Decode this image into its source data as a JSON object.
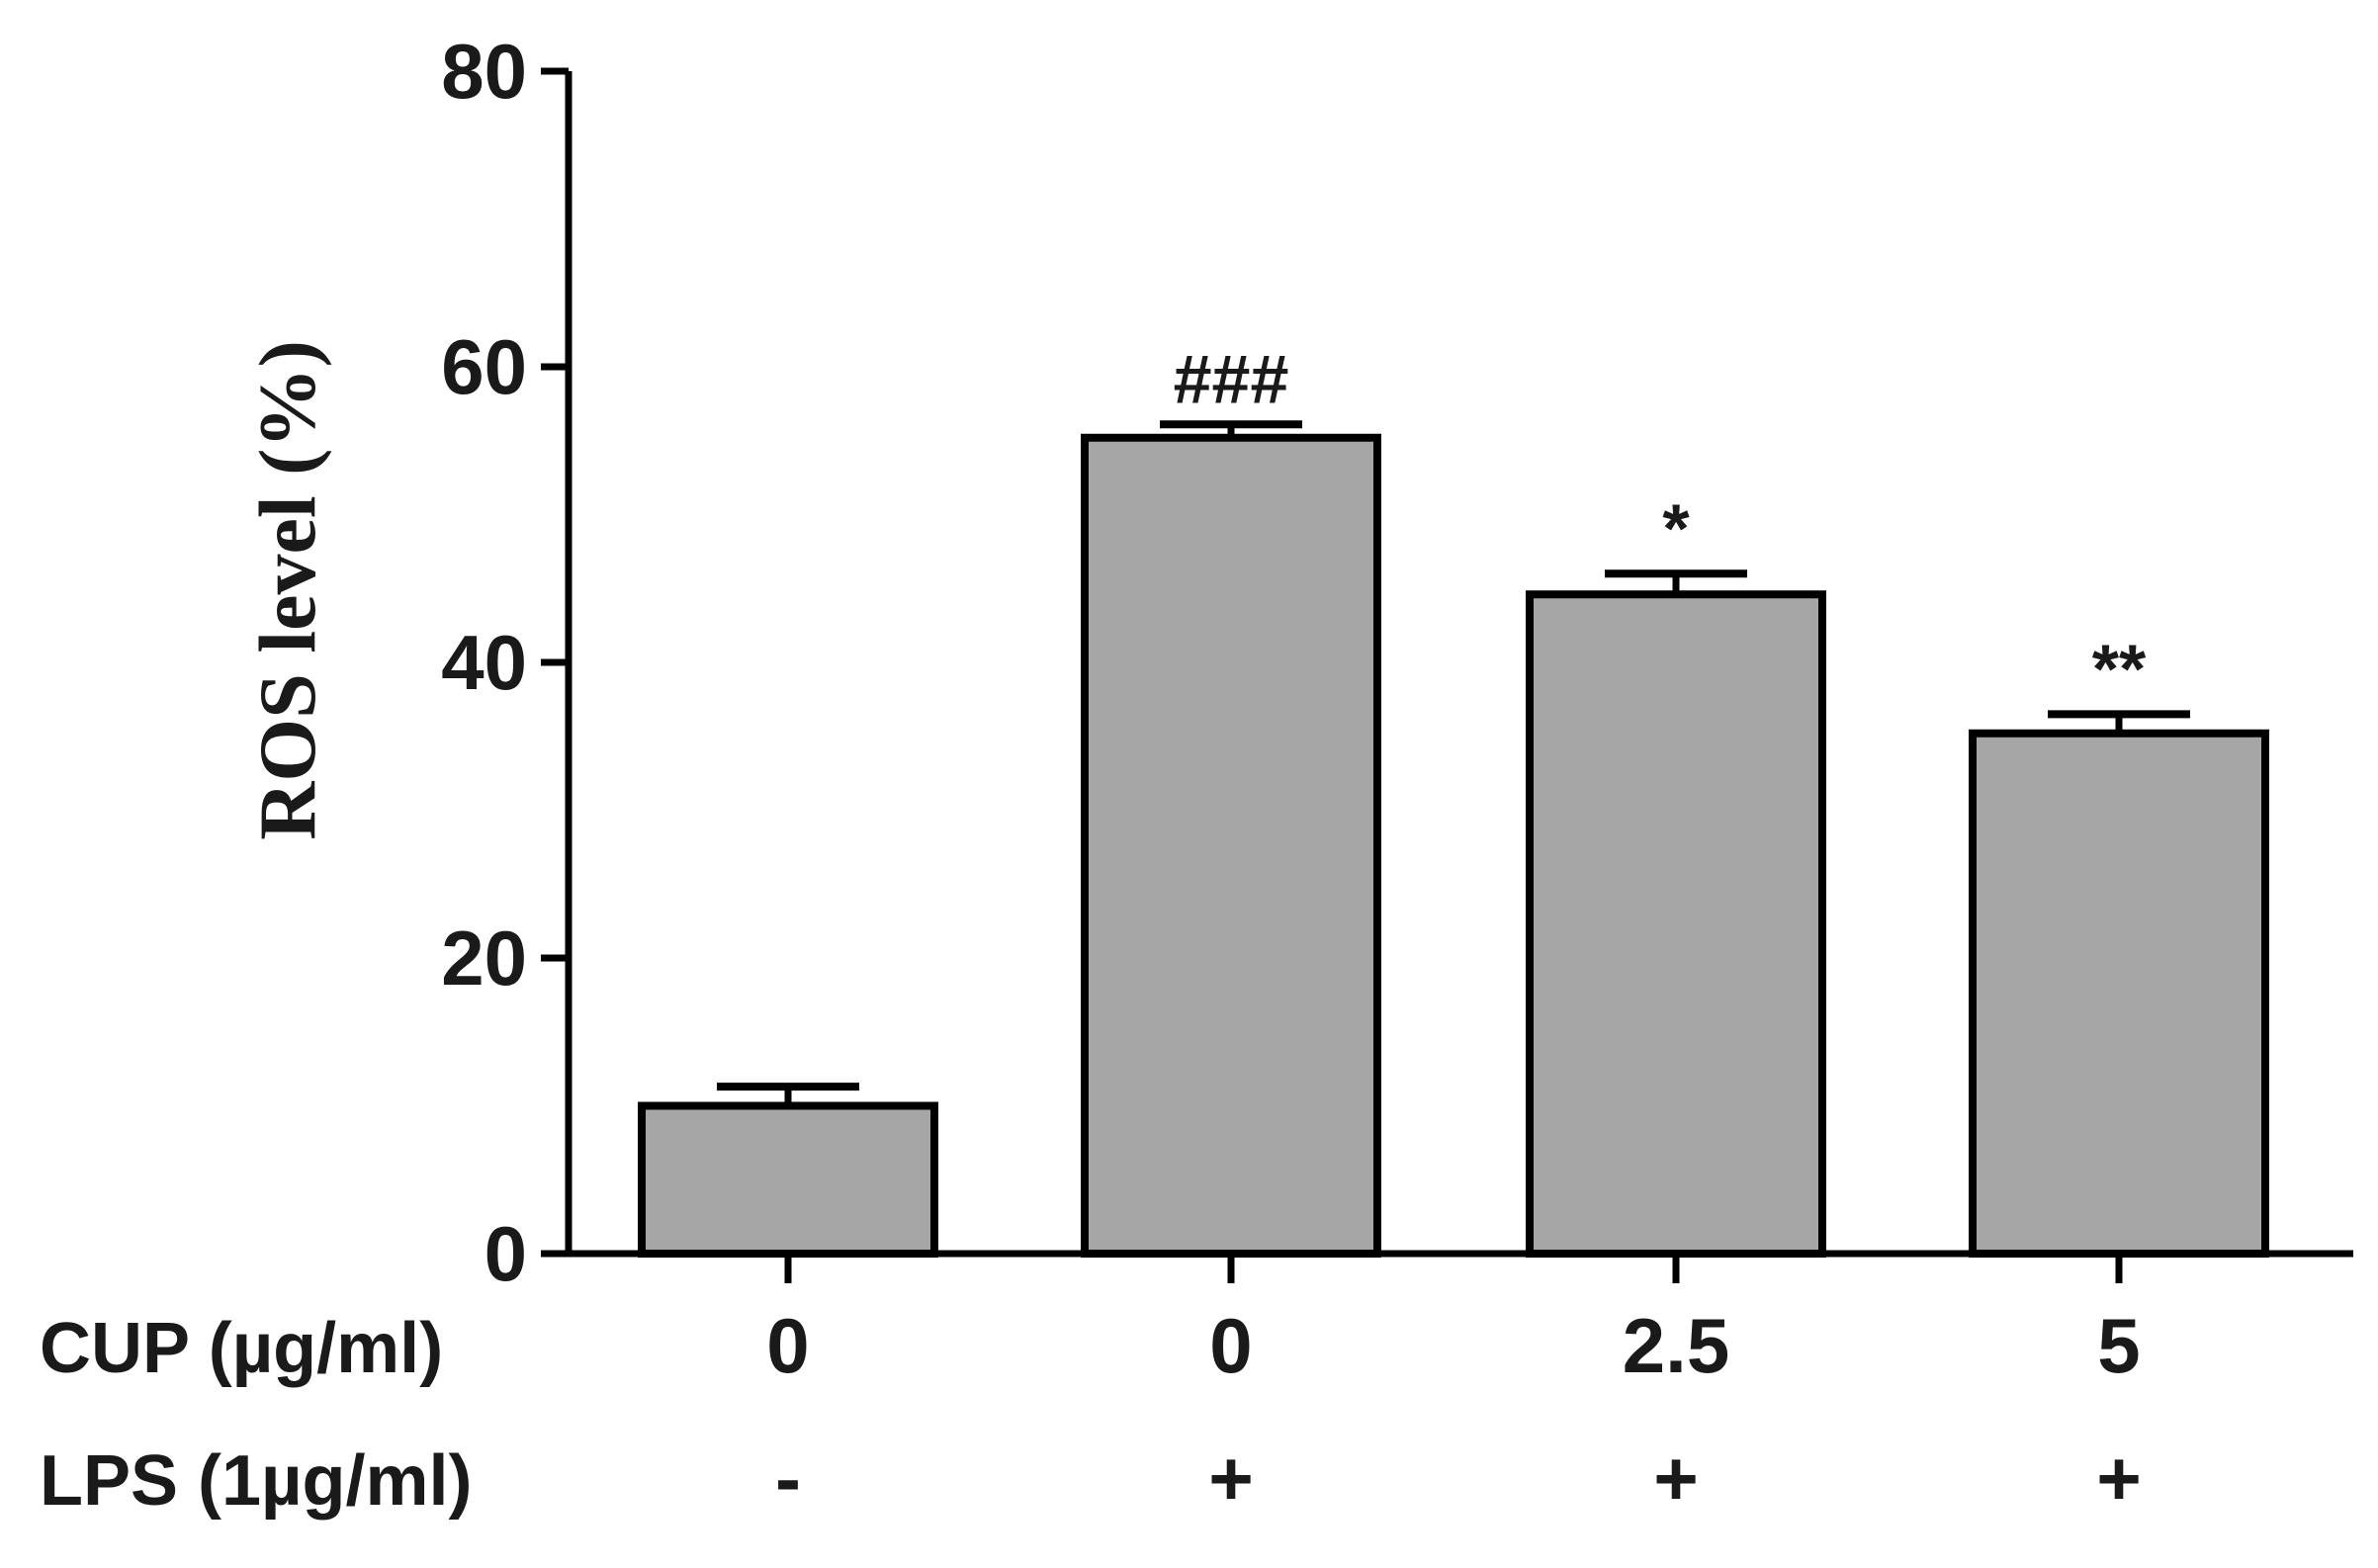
{
  "chart_data": {
    "type": "bar",
    "title": "",
    "xlabel": "",
    "ylabel": "ROS level (%)",
    "ylim": [
      0,
      80
    ],
    "yticks": [
      0,
      20,
      40,
      60,
      80
    ],
    "grid": false,
    "legend": "none",
    "bar_color": "#a6a6a6",
    "edge_color": "#000000",
    "categories": [
      "0",
      "0",
      "2.5",
      "5"
    ],
    "values": [
      10,
      55.2,
      44.6,
      35.2
    ],
    "errors": [
      1.3,
      0.9,
      1.4,
      1.3
    ],
    "annotations": [
      "",
      "###",
      "*",
      "**"
    ],
    "condition_rows": [
      {
        "label": "CUP  (µg/ml)",
        "values": [
          "0",
          "0",
          "2.5",
          "5"
        ]
      },
      {
        "label": "LPS (1µg/ml)",
        "values": [
          "-",
          "+",
          "+",
          "+"
        ]
      }
    ]
  }
}
